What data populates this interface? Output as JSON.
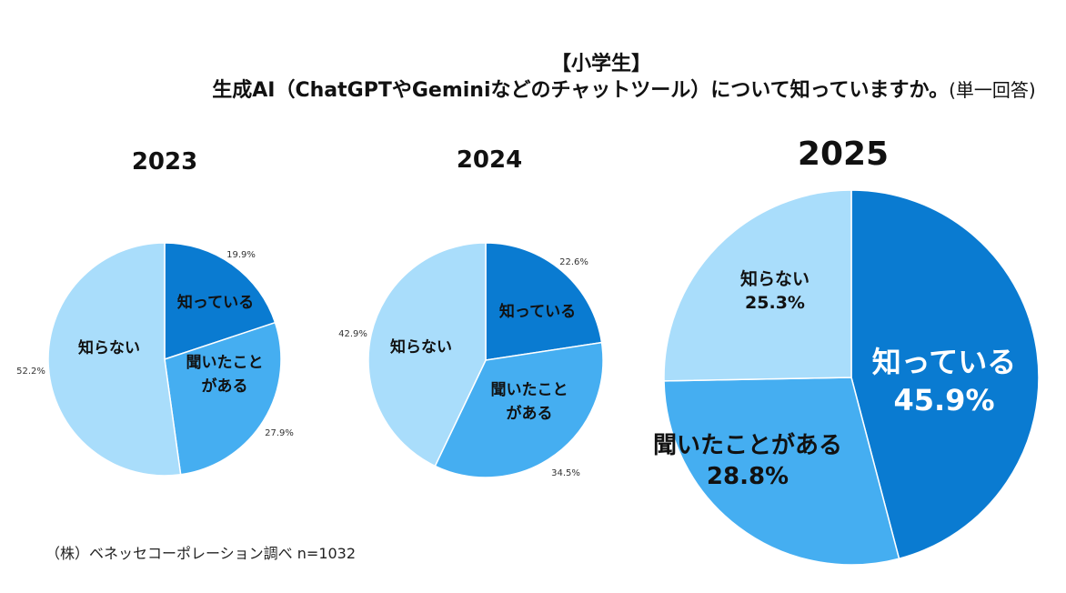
{
  "header": {
    "category": "【小学生】",
    "question": "生成AI（ChatGPTやGeminiなどのチャットツール）について知っていますか。",
    "answer_type": "(単一回答)"
  },
  "source": "（株）ベネッセコーポレーション調べ n=1032",
  "colors": {
    "know": "#0a7bd1",
    "heard": "#45aef1",
    "dont_know": "#a9ddfb"
  },
  "chart_data": [
    {
      "type": "pie",
      "title": "2023",
      "slices": [
        {
          "key": "know",
          "label": "知っている",
          "value": 19.9,
          "value_label": "19.9%"
        },
        {
          "key": "heard",
          "label": "聞いたことがある",
          "value": 27.9,
          "value_label": "27.9%"
        },
        {
          "key": "dont_know",
          "label": "知らない",
          "value": 52.2,
          "value_label": "52.2%"
        }
      ]
    },
    {
      "type": "pie",
      "title": "2024",
      "slices": [
        {
          "key": "know",
          "label": "知っている",
          "value": 22.6,
          "value_label": "22.6%"
        },
        {
          "key": "heard",
          "label": "聞いたことがある",
          "value": 34.5,
          "value_label": "34.5%"
        },
        {
          "key": "dont_know",
          "label": "知らない",
          "value": 42.9,
          "value_label": "42.9%"
        }
      ]
    },
    {
      "type": "pie",
      "title": "2025",
      "slices": [
        {
          "key": "know",
          "label": "知っている",
          "value": 45.9,
          "value_label": "45.9%"
        },
        {
          "key": "heard",
          "label": "聞いたことがある",
          "value": 28.8,
          "value_label": "28.8%"
        },
        {
          "key": "dont_know",
          "label": "知らない",
          "value": 25.3,
          "value_label": "25.3%"
        }
      ]
    }
  ]
}
